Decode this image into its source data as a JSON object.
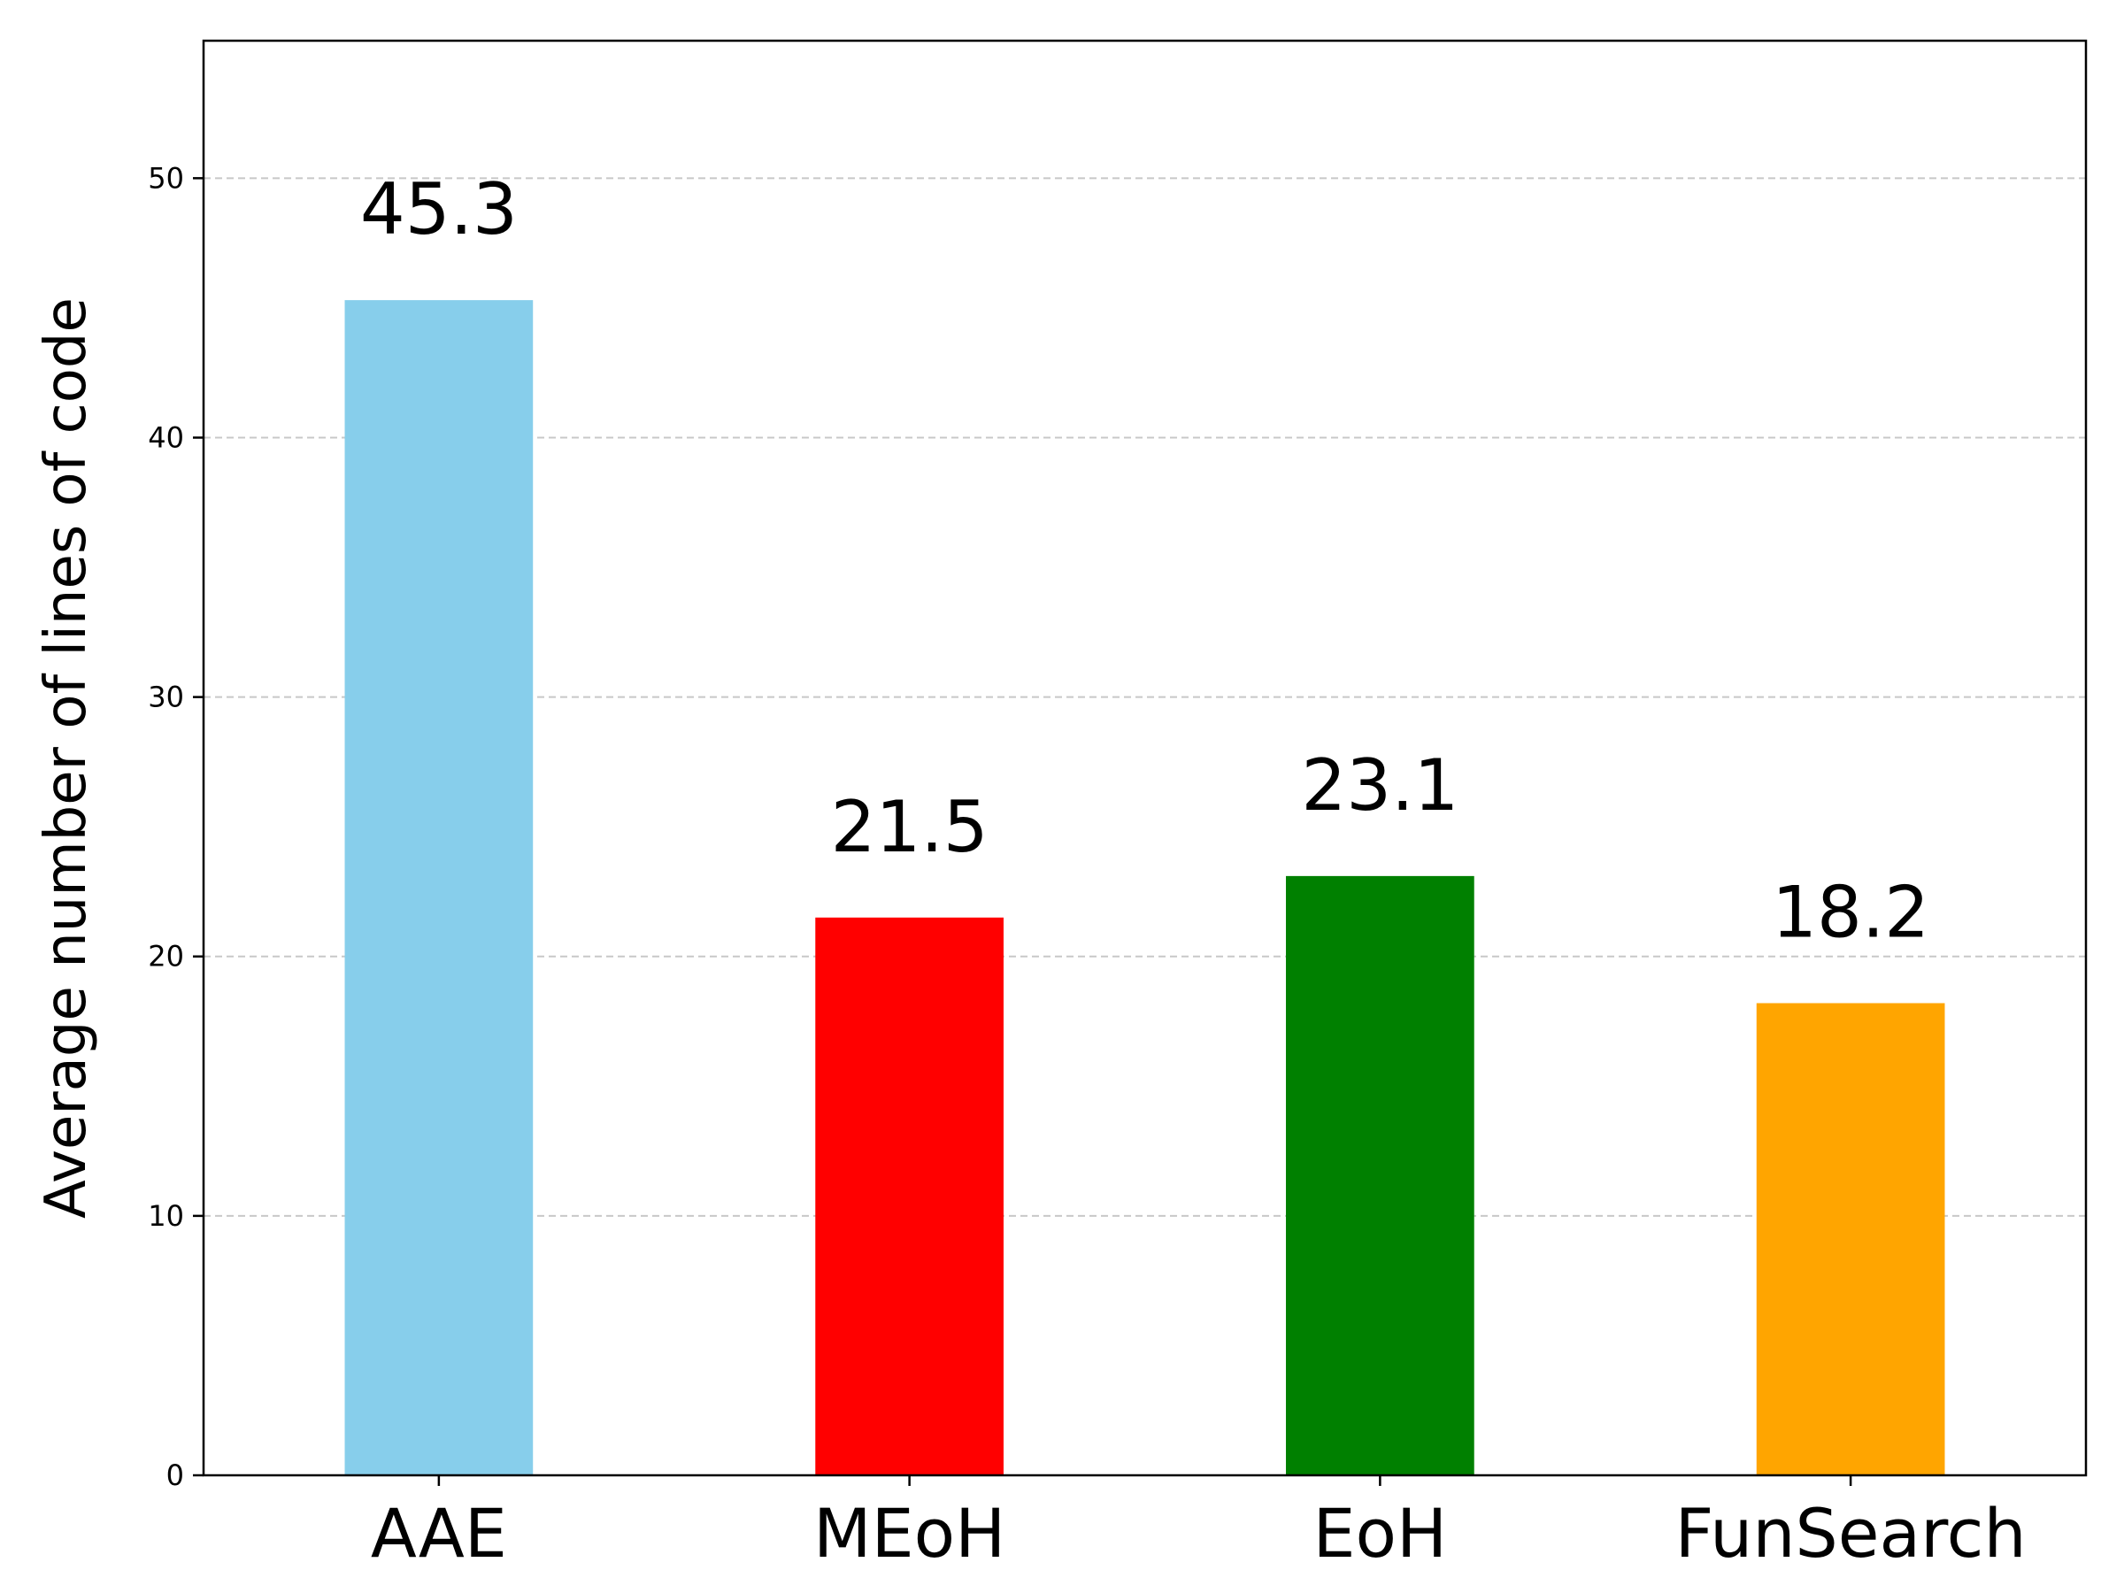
{
  "chart_data": {
    "type": "bar",
    "title": "",
    "xlabel": "",
    "ylabel": "Average number of lines of code",
    "categories": [
      "AAE",
      "MEoH",
      "EoH",
      "FunSearch"
    ],
    "values": [
      45.3,
      21.5,
      23.1,
      18.2
    ],
    "value_labels": [
      "45.3",
      "21.5",
      "23.1",
      "18.2"
    ],
    "colors": [
      "#87ceeb",
      "#ff0000",
      "#008000",
      "#ffa500"
    ],
    "ylim": [
      0,
      55.3
    ],
    "yticks": [
      0,
      10,
      20,
      30,
      40,
      50
    ],
    "ytick_labels": [
      "0",
      "10",
      "20",
      "30",
      "40",
      "50"
    ],
    "grid": "y-dashed",
    "legend": "none"
  }
}
